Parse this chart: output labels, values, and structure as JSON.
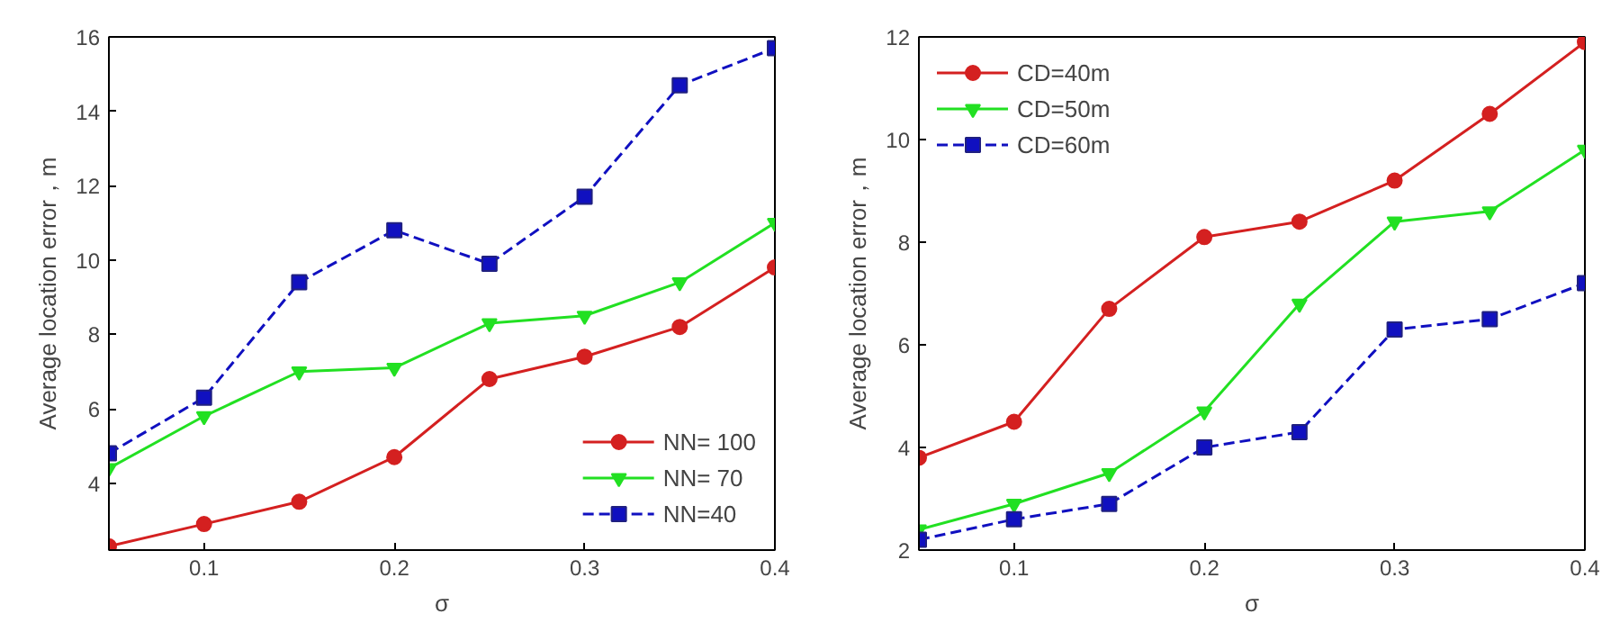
{
  "chart_data": [
    {
      "type": "line",
      "xlabel": "σ",
      "ylabel": "Average location error，m",
      "x": [
        0.05,
        0.1,
        0.15,
        0.2,
        0.25,
        0.3,
        0.35,
        0.4
      ],
      "xlim": [
        0.05,
        0.4
      ],
      "xticks": [
        0.1,
        0.2,
        0.3,
        0.4
      ],
      "ylim": [
        2.2,
        16
      ],
      "yticks": [
        4,
        6,
        8,
        10,
        12,
        14,
        16
      ],
      "grid": false,
      "legend": "bottom right",
      "series": [
        {
          "name": "NN= 100",
          "color": "#d42020",
          "marker": "circle",
          "line_style": "solid",
          "values": [
            2.3,
            2.9,
            3.5,
            4.7,
            6.8,
            7.4,
            8.2,
            9.8
          ]
        },
        {
          "name": "NN= 70",
          "color": "#22e022",
          "marker": "triangle",
          "line_style": "solid",
          "values": [
            4.4,
            5.8,
            7.0,
            7.1,
            8.3,
            8.5,
            9.4,
            11.0
          ]
        },
        {
          "name": "NN=40",
          "color": "#1010c0",
          "marker": "square",
          "line_style": "dashed",
          "values": [
            4.8,
            6.3,
            9.4,
            10.8,
            9.9,
            11.7,
            14.7,
            15.7
          ]
        }
      ]
    },
    {
      "type": "line",
      "xlabel": "σ",
      "ylabel": "Average location error，m",
      "x": [
        0.05,
        0.1,
        0.15,
        0.2,
        0.25,
        0.3,
        0.35,
        0.4
      ],
      "xlim": [
        0.05,
        0.4
      ],
      "xticks": [
        0.1,
        0.2,
        0.3,
        0.4
      ],
      "ylim": [
        2,
        12
      ],
      "yticks": [
        2,
        4,
        6,
        8,
        10,
        12
      ],
      "grid": false,
      "legend": "top left",
      "series": [
        {
          "name": "CD=40m",
          "color": "#d42020",
          "marker": "circle",
          "line_style": "solid",
          "values": [
            3.8,
            4.5,
            6.7,
            8.1,
            8.4,
            9.2,
            10.5,
            11.9
          ]
        },
        {
          "name": "CD=50m",
          "color": "#22e022",
          "marker": "triangle",
          "line_style": "solid",
          "values": [
            2.4,
            2.9,
            3.5,
            4.7,
            6.8,
            8.4,
            8.6,
            9.8
          ]
        },
        {
          "name": "CD=60m",
          "color": "#1010c0",
          "marker": "square",
          "line_style": "dashed",
          "values": [
            2.2,
            2.6,
            2.9,
            4.0,
            4.3,
            6.3,
            6.5,
            7.2
          ]
        }
      ]
    }
  ]
}
